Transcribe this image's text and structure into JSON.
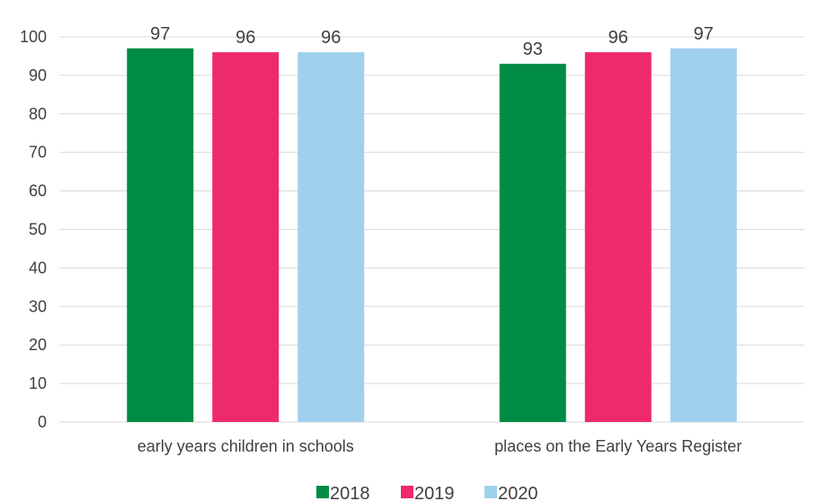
{
  "chart_data": {
    "type": "bar",
    "categories": [
      "early years children in schools",
      "places on the Early Years Register"
    ],
    "series": [
      {
        "name": "2018",
        "values": [
          97,
          93
        ],
        "color": "#008c45"
      },
      {
        "name": "2019",
        "values": [
          96,
          96
        ],
        "color": "#ee2a6b"
      },
      {
        "name": "2020",
        "values": [
          96,
          97
        ],
        "color": "#9fd1ef"
      }
    ],
    "ylim": [
      0,
      100
    ],
    "yticks": [
      0,
      10,
      20,
      30,
      40,
      50,
      60,
      70,
      80,
      90,
      100
    ],
    "grid": true,
    "legend_position": "bottom",
    "data_labels": true,
    "gridline_color": "#d9d9d9",
    "text_color": "#404040"
  }
}
